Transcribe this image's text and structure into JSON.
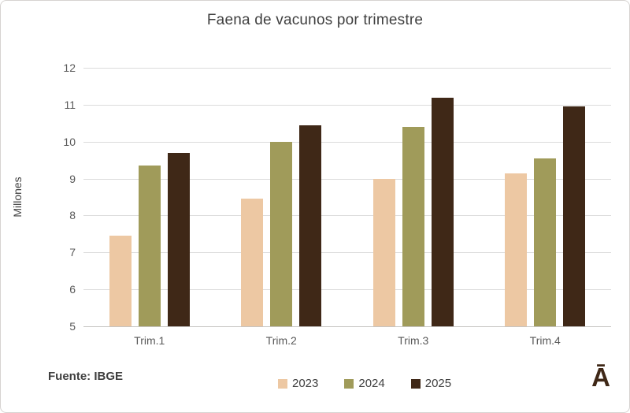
{
  "chart_data": {
    "type": "bar",
    "title": "Faena de vacunos por trimestre",
    "xlabel": "",
    "ylabel": "Millones",
    "categories": [
      "Trim.1",
      "Trim.2",
      "Trim.3",
      "Trim.4"
    ],
    "series": [
      {
        "name": "2023",
        "color": "#edc8a3",
        "values": [
          7.45,
          8.45,
          9.0,
          9.15
        ]
      },
      {
        "name": "2024",
        "color": "#a09b5a",
        "values": [
          9.35,
          10.0,
          10.4,
          9.55
        ]
      },
      {
        "name": "2025",
        "color": "#3f2817",
        "values": [
          9.7,
          10.45,
          11.2,
          10.95
        ]
      }
    ],
    "ylim": [
      5,
      12
    ],
    "ytick_step": 1,
    "grid": true,
    "legend_position": "bottom-center"
  },
  "footer": {
    "source_label": "Fuente: IBGE",
    "logo_glyph": "Ā"
  },
  "colors": {
    "title_text": "#3f3f3f",
    "tick_text": "#595959",
    "gridline": "#dbdbdb",
    "axis_baseline": "#c6c4c2",
    "border": "#d6d3d1",
    "logo": "#3f2817"
  }
}
